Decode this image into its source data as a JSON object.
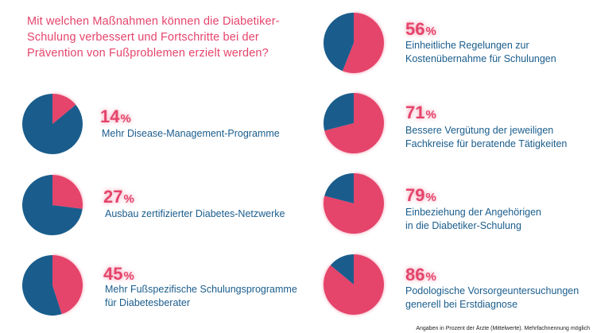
{
  "question": "Mit welchen Maßnahmen können die Diabetiker-Schulung verbessert und Fortschritte bei der Prävention von Fußproblemen erzielt werden?",
  "footnote": "Angaben in Prozent der Ärzte (Mittelwerte). Mehrfachnennung möglich",
  "unit_symbol": "%",
  "colors": {
    "share": "#e5446b",
    "rest": "#1a5d8c"
  },
  "chart_data": {
    "type": "pie",
    "title": "Mit welchen Maßnahmen können die Diabetiker-Schulung verbessert und Fortschritte bei der Prävention von Fußproblemen erzielt werden?",
    "unit": "%",
    "note": "Angaben in Prozent der Ärzte (Mittelwerte). Mehrfachnennung möglich",
    "series": [
      {
        "name": "Mehr Disease-Management-Programme",
        "value": 14,
        "label_lines": [
          "Mehr Disease-Management-Programme"
        ]
      },
      {
        "name": "Ausbau zertifizierter Diabetes-Netzwerke",
        "value": 27,
        "label_lines": [
          "Ausbau zertifizierter Diabetes-Netzwerke"
        ]
      },
      {
        "name": "Mehr Fußspezifische Schulungsprogramme für Diabetesberater",
        "value": 45,
        "label_lines": [
          "Mehr Fußspezifische Schulungsprogramme",
          "für Diabetesberater"
        ]
      },
      {
        "name": "Einheitliche Regelungen zur Kostenübernahme für Schulungen",
        "value": 56,
        "label_lines": [
          "Einheitliche Regelungen zur",
          "Kostenübernahme für Schulungen"
        ]
      },
      {
        "name": "Bessere Vergütung der jeweiligen Fachkreise für beratende Tätigkeiten",
        "value": 71,
        "label_lines": [
          "Bessere Vergütung der jeweiligen",
          "Fachkreise für beratende Tätigkeiten"
        ]
      },
      {
        "name": "Einbeziehung der Angehörigen in die Diabetiker-Schulung",
        "value": 79,
        "label_lines": [
          "Einbeziehung der Angehörigen",
          "in die Diabetiker-Schulung"
        ]
      },
      {
        "name": "Podologische Vorsorgeuntersuchungen generell bei Erstdiagnose",
        "value": 86,
        "label_lines": [
          "Podologische Vorsorgeuntersuchungen",
          "generell bei Erstdiagnose"
        ]
      }
    ]
  }
}
